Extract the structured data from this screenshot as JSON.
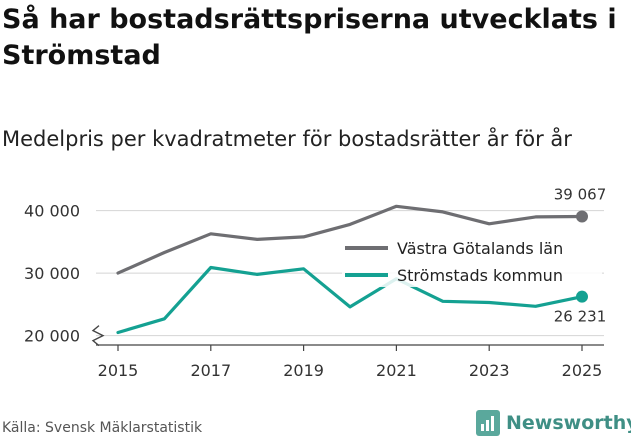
{
  "title": "Så har bostadsrättspriserna utvecklats i Strömstad",
  "subtitle": "Medelpris per kvadratmeter för bostadsrätter år för år",
  "source": "Källa: Svensk Mäklarstatistik",
  "brand": "Newsworthy",
  "colors": {
    "series_1": "#6e6e72",
    "series_2": "#14a192",
    "axis": "#333333",
    "brand": "#3f8f85"
  },
  "chart_data": {
    "type": "line",
    "title": "Så har bostadsrättspriserna utvecklats i Strömstad",
    "subtitle": "Medelpris per kvadratmeter för bostadsrätter år för år",
    "xlabel": "",
    "ylabel": "",
    "x": [
      2015,
      2016,
      2017,
      2018,
      2019,
      2020,
      2021,
      2022,
      2023,
      2024,
      2025
    ],
    "xticks": [
      "2015",
      "2017",
      "2019",
      "2021",
      "2023",
      "2025"
    ],
    "yticks": [
      "20 000",
      "30 000",
      "40 000"
    ],
    "ylim": [
      18500,
      42500
    ],
    "axis_break": true,
    "legend_position": "center-right",
    "series": [
      {
        "name": "Västra Götalands län",
        "values": [
          30000,
          33300,
          36300,
          35400,
          35800,
          37800,
          40700,
          39800,
          37900,
          39000,
          39067
        ],
        "end_label": "39 067"
      },
      {
        "name": "Strömstads kommun",
        "values": [
          20500,
          22700,
          30900,
          29800,
          30700,
          24600,
          29100,
          25500,
          25300,
          24700,
          26231
        ],
        "end_label": "26 231"
      }
    ]
  }
}
